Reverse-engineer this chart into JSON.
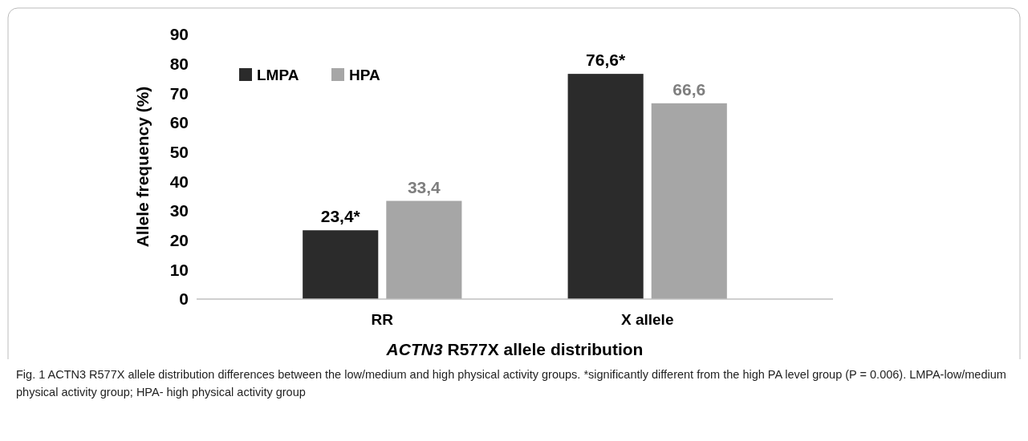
{
  "chart_data": {
    "type": "bar",
    "xlabel": "ACTN3 R577X allele distribution",
    "ylabel": "Allele frequency (%)",
    "categories": [
      "RR",
      "X allele"
    ],
    "series": [
      {
        "name": "LMPA",
        "color": "#2b2b2b",
        "values": [
          23.4,
          76.6
        ],
        "value_labels": [
          "23,4*",
          "76,6*"
        ]
      },
      {
        "name": "HPA",
        "color": "#a6a6a6",
        "values": [
          33.4,
          66.6
        ],
        "value_labels": [
          "33,4",
          "66,6"
        ]
      }
    ],
    "ylim": [
      0,
      90
    ],
    "yticks": [
      0,
      10,
      20,
      30,
      40,
      50,
      60,
      70,
      80,
      90
    ],
    "grid": false,
    "legend": "top left",
    "annotations": [
      "Fig. 1 ACTN3 R577X allele distribution differences between the low/medium and high physical activity groups. *significantly different from the high PA level group (P = 0.006). LMPA-low/medium physical activity group; HPA- high physical activity group"
    ]
  }
}
